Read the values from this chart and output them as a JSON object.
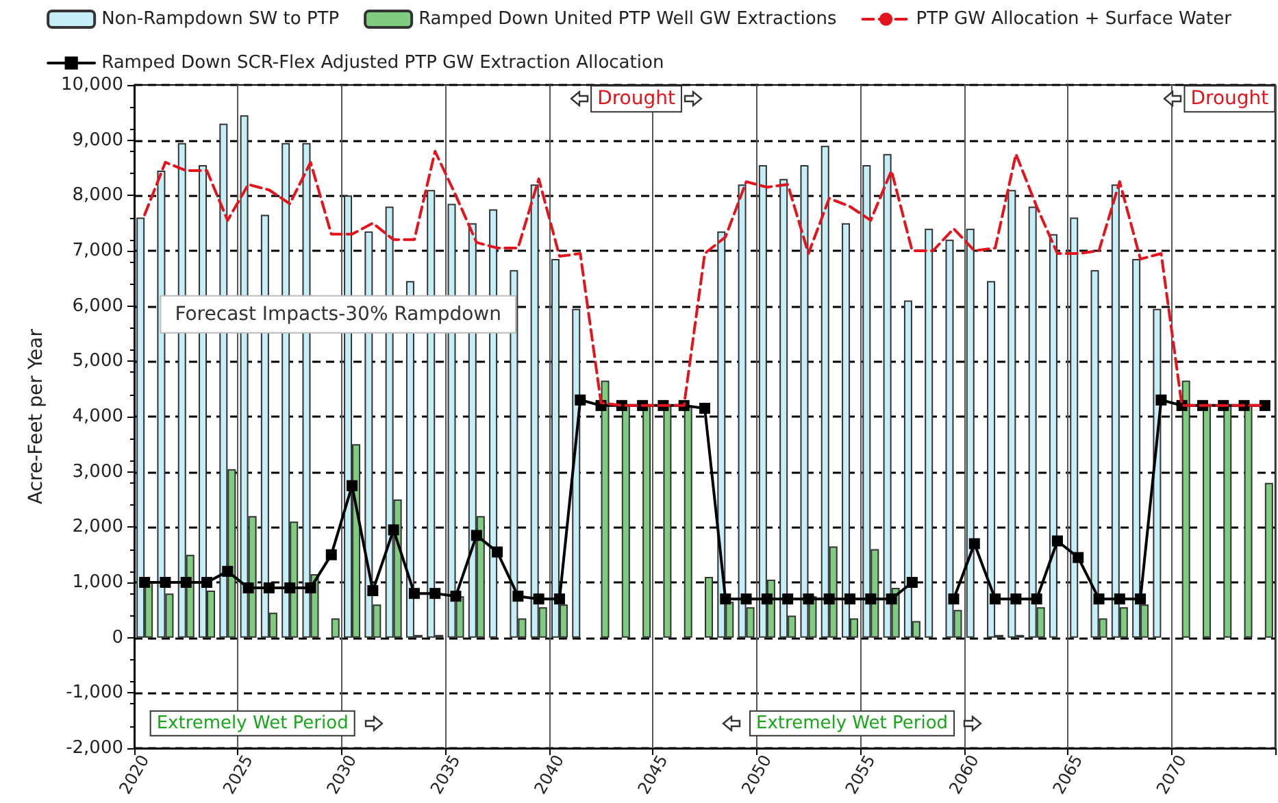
{
  "chart_data": {
    "type": "bar",
    "ylabel": "Acre-Feet per Year",
    "annotations": [
      "Forecast Impacts-30% Rampdown",
      "Drought",
      "Drought",
      "Extremely Wet Period",
      "Extremely Wet Period"
    ],
    "categories": [
      "2020",
      null,
      null,
      null,
      null,
      "2025",
      null,
      null,
      null,
      null,
      "2030",
      null,
      null,
      null,
      null,
      "2035",
      null,
      null,
      null,
      null,
      "2040",
      null,
      null,
      null,
      null,
      "2045",
      null,
      null,
      null,
      null,
      "2050",
      null,
      null,
      null,
      null,
      "2055",
      null,
      null,
      null,
      null,
      "2060",
      null,
      null,
      null,
      null,
      "2065",
      null,
      null,
      null,
      null,
      "2070",
      null,
      null,
      null,
      null
    ],
    "series": [
      {
        "name": "Non-Rampdown SW to PTP",
        "color": "#c5eef9",
        "values": [
          7600,
          8450,
          8950,
          8550,
          9300,
          9450,
          7650,
          8950,
          8950,
          null,
          8000,
          7350,
          7800,
          6450,
          8100,
          7850,
          7500,
          7750,
          6650,
          8200,
          6850,
          5950,
          null,
          null,
          null,
          null,
          null,
          null,
          7350,
          8200,
          8550,
          8300,
          8550,
          8900,
          7500,
          8550,
          8750,
          6100,
          7400,
          7200,
          7400,
          6450,
          8100,
          7800,
          7300,
          7600,
          6650,
          8200,
          6850,
          5950,
          null,
          null,
          null,
          null,
          null
        ]
      },
      {
        "name": "Ramped Down United PTP Well GW Extractions",
        "color": "#7fcb7f",
        "values": [
          1000,
          800,
          1500,
          850,
          3050,
          2200,
          450,
          2100,
          1150,
          350,
          3500,
          600,
          2500,
          50,
          50,
          750,
          2200,
          null,
          350,
          550,
          600,
          null,
          4650,
          4200,
          4200,
          4200,
          4200,
          1100,
          650,
          550,
          1050,
          400,
          750,
          1650,
          350,
          1600,
          900,
          300,
          null,
          500,
          null,
          50,
          50,
          550,
          null,
          null,
          350,
          550,
          600,
          null,
          4650,
          4200,
          4200,
          4200,
          2800
        ]
      },
      {
        "name": "PTP GW Allocation + Surface Water",
        "type": "line",
        "color": "#e3141c",
        "marker": "none",
        "line_style": "dashed",
        "values": [
          7650,
          8600,
          8450,
          8450,
          7550,
          8200,
          8100,
          7850,
          8600,
          7300,
          7300,
          7500,
          7200,
          7200,
          8800,
          8000,
          7150,
          7050,
          7050,
          8300,
          6900,
          6950,
          4250,
          4200,
          4200,
          4200,
          4200,
          6950,
          7250,
          8250,
          8150,
          8200,
          6950,
          7950,
          7800,
          7550,
          8450,
          7000,
          7000,
          7400,
          7000,
          7050,
          8750,
          7800,
          6950,
          6950,
          7000,
          8250,
          6850,
          6950,
          4200,
          4200,
          4200,
          4200,
          4200
        ]
      },
      {
        "name": "Ramped Down SCR-Flex Adjusted PTP GW Extraction Allocation",
        "type": "line",
        "color": "#000000",
        "marker": "square",
        "line_style": "solid",
        "values": [
          1000,
          1000,
          1000,
          1000,
          1200,
          900,
          900,
          900,
          900,
          1500,
          2750,
          850,
          1950,
          800,
          800,
          750,
          1850,
          1550,
          750,
          700,
          700,
          4300,
          4200,
          4200,
          4200,
          4200,
          4200,
          4150,
          700,
          700,
          700,
          700,
          700,
          700,
          700,
          700,
          700,
          1000,
          null,
          700,
          1700,
          700,
          700,
          700,
          1750,
          1450,
          700,
          700,
          700,
          4300,
          4200,
          4200,
          4200,
          4200,
          4200
        ]
      }
    ],
    "ylim": [
      -2000,
      10000
    ],
    "yticks": [
      {
        "value": -2000,
        "label": "-2,000"
      },
      {
        "value": -1000,
        "label": "-1,000"
      },
      0,
      {
        "value": 1000,
        "label": "1,000"
      },
      {
        "value": 2000,
        "label": "2,000"
      },
      {
        "value": 3000,
        "label": "3,000"
      },
      {
        "value": 4000,
        "label": "4,000"
      },
      {
        "value": 5000,
        "label": "5,000"
      },
      {
        "value": 6000,
        "label": "6,000"
      },
      {
        "value": 7000,
        "label": "7,000"
      },
      {
        "value": 8000,
        "label": "8,000"
      },
      {
        "value": 9000,
        "label": "9,000"
      },
      {
        "value": 10000,
        "label": "10,000"
      }
    ],
    "grid": true,
    "legend": "top"
  }
}
